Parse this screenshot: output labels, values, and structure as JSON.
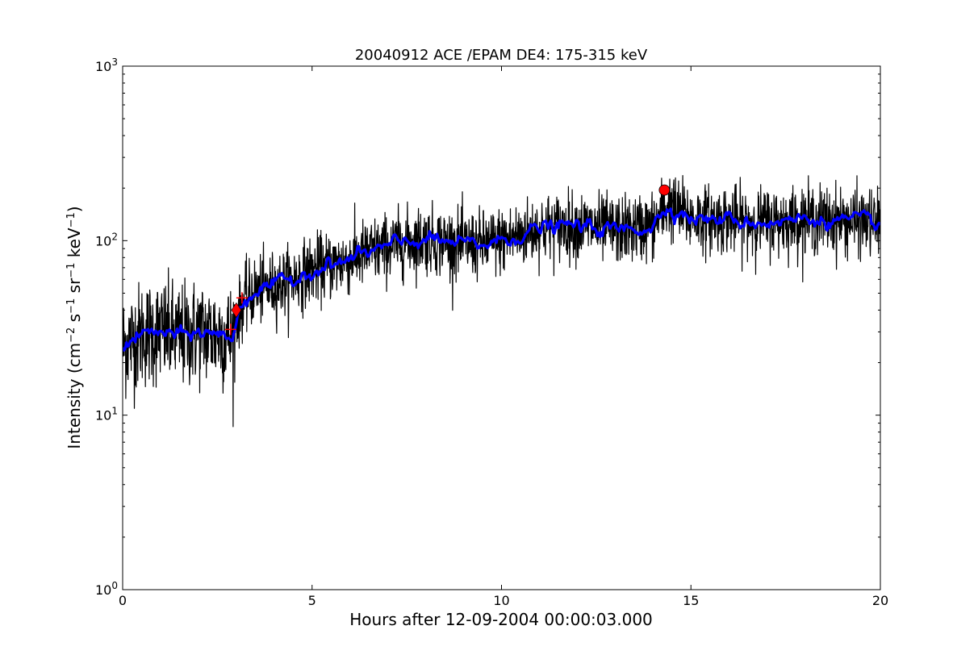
{
  "chart_data": {
    "type": "line",
    "title": "20040912 ACE /EPAM DE4: 175-315 keV",
    "xlabel": "Hours after 12-09-2004 00:00:03.000",
    "ylabel": {
      "prefix": "Intensity (cm",
      "sup1": "−2",
      "mid1": " s",
      "sup2": "−1",
      "mid2": " sr",
      "sup3": "−1",
      "mid3": " keV",
      "sup4": "−1",
      "suffix": ")"
    },
    "xlim": [
      0,
      20
    ],
    "ylim": [
      1,
      1000
    ],
    "yscale": "log",
    "x_ticks": [
      0,
      5,
      10,
      15,
      20
    ],
    "x_tick_labels": [
      "0",
      "5",
      "10",
      "15",
      "20"
    ],
    "y_ticks": [
      1,
      10,
      100,
      1000
    ],
    "y_tick_labels": [
      {
        "base": "10",
        "exp": "0"
      },
      {
        "base": "10",
        "exp": "1"
      },
      {
        "base": "10",
        "exp": "2"
      },
      {
        "base": "10",
        "exp": "3"
      }
    ],
    "grid": false,
    "colors": {
      "raw": "#000000",
      "smoothed": "#0000ff",
      "markers": "#ff0000"
    },
    "series": [
      {
        "role": "raw",
        "x": [
          0,
          0.5,
          1,
          1.5,
          2,
          2.5,
          2.9,
          3.0,
          3.2,
          3.5,
          4,
          4.5,
          5,
          5.5,
          6,
          6.5,
          7,
          7.5,
          8,
          8.5,
          9,
          9.5,
          10,
          10.5,
          11,
          11.5,
          12,
          12.5,
          13,
          13.5,
          14,
          14.2,
          14.4,
          14.6,
          15,
          15.5,
          16,
          16.5,
          17,
          17.5,
          18,
          18.5,
          19,
          19.5,
          20
        ],
        "values": [
          25,
          29,
          30,
          28,
          30,
          29,
          28,
          35,
          45,
          52,
          55,
          60,
          68,
          72,
          78,
          86,
          92,
          98,
          102,
          98,
          95,
          95,
          100,
          108,
          118,
          120,
          122,
          118,
          115,
          117,
          122,
          140,
          160,
          150,
          135,
          132,
          132,
          128,
          128,
          130,
          133,
          132,
          130,
          128,
          125
        ],
        "noise": 0.22,
        "noise_high": 0.35
      },
      {
        "role": "smoothed",
        "x": [
          0,
          0.5,
          1,
          1.5,
          2,
          2.5,
          2.9,
          3.0,
          3.2,
          3.5,
          4,
          4.5,
          5,
          5.5,
          6,
          6.5,
          7,
          7.5,
          8,
          8.5,
          9,
          9.5,
          10,
          10.5,
          11,
          11.5,
          12,
          12.5,
          13,
          13.5,
          14,
          14.2,
          14.4,
          14.6,
          15,
          15.5,
          16,
          16.5,
          17,
          17.5,
          18,
          18.5,
          19,
          19.5,
          20
        ],
        "values": [
          25,
          29,
          30,
          28,
          30,
          29,
          28,
          35,
          45,
          52,
          55,
          60,
          68,
          72,
          78,
          86,
          92,
          98,
          102,
          98,
          95,
          95,
          100,
          108,
          118,
          120,
          122,
          118,
          115,
          117,
          122,
          140,
          160,
          150,
          135,
          132,
          132,
          128,
          128,
          130,
          133,
          132,
          130,
          128,
          125
        ],
        "noise": 0.06
      }
    ],
    "markers": [
      {
        "shape": "diamond",
        "x": 3.0,
        "y": 40
      },
      {
        "shape": "plus",
        "x": 3.15,
        "y": 47
      },
      {
        "shape": "plus",
        "x": 2.85,
        "y": 31
      },
      {
        "shape": "circle",
        "x": 14.3,
        "y": 195
      }
    ]
  }
}
